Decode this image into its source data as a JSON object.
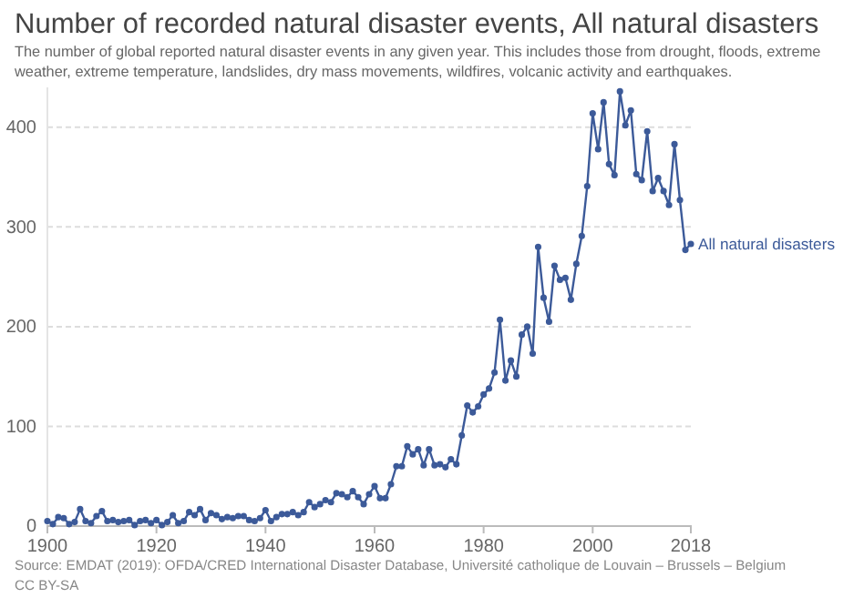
{
  "chart_data": {
    "type": "line",
    "title": "Number of recorded natural disaster events, All natural disasters",
    "subtitle": "The number of global reported natural disaster events in any given year. This includes those from drought, floods, extreme weather, extreme temperature, landslides, dry mass movements, wildfires, volcanic activity and earthquakes.",
    "x": [
      1900,
      1901,
      1902,
      1903,
      1904,
      1905,
      1906,
      1907,
      1908,
      1909,
      1910,
      1911,
      1912,
      1913,
      1914,
      1915,
      1916,
      1917,
      1918,
      1919,
      1920,
      1921,
      1922,
      1923,
      1924,
      1925,
      1926,
      1927,
      1928,
      1929,
      1930,
      1931,
      1932,
      1933,
      1934,
      1935,
      1936,
      1937,
      1938,
      1939,
      1940,
      1941,
      1942,
      1943,
      1944,
      1945,
      1946,
      1947,
      1948,
      1949,
      1950,
      1951,
      1952,
      1953,
      1954,
      1955,
      1956,
      1957,
      1958,
      1959,
      1960,
      1961,
      1962,
      1963,
      1964,
      1965,
      1966,
      1967,
      1968,
      1969,
      1970,
      1971,
      1972,
      1973,
      1974,
      1975,
      1976,
      1977,
      1978,
      1979,
      1980,
      1981,
      1982,
      1983,
      1984,
      1985,
      1986,
      1987,
      1988,
      1989,
      1990,
      1991,
      1992,
      1993,
      1994,
      1995,
      1996,
      1997,
      1998,
      1999,
      2000,
      2001,
      2002,
      2003,
      2004,
      2005,
      2006,
      2007,
      2008,
      2009,
      2010,
      2011,
      2012,
      2013,
      2014,
      2015,
      2016,
      2017,
      2018
    ],
    "series": [
      {
        "name": "All natural disasters",
        "color": "#3c5a99",
        "values": [
          5,
          2,
          9,
          8,
          2,
          4,
          17,
          5,
          3,
          10,
          15,
          5,
          6,
          4,
          5,
          6,
          1,
          5,
          6,
          3,
          6,
          1,
          4,
          11,
          3,
          5,
          14,
          11,
          17,
          6,
          13,
          11,
          7,
          9,
          8,
          10,
          10,
          6,
          5,
          8,
          16,
          5,
          9,
          12,
          12,
          14,
          11,
          14,
          24,
          19,
          22,
          26,
          24,
          33,
          32,
          29,
          35,
          29,
          22,
          32,
          40,
          28,
          28,
          42,
          60,
          60,
          80,
          72,
          77,
          61,
          77,
          61,
          62,
          59,
          67,
          62,
          91,
          121,
          114,
          120,
          132,
          138,
          154,
          207,
          146,
          166,
          150,
          192,
          200,
          173,
          280,
          229,
          205,
          261,
          247,
          249,
          227,
          263,
          291,
          341,
          414,
          378,
          425,
          363,
          352,
          436,
          402,
          417,
          353,
          347,
          396,
          336,
          349,
          336,
          322,
          383,
          327,
          277,
          283
        ]
      }
    ],
    "xlim": [
      1900,
      2018
    ],
    "xticks": [
      1900,
      1920,
      1940,
      1960,
      1980,
      2000,
      2018
    ],
    "ylim": [
      0,
      440
    ],
    "yticks": [
      0,
      100,
      200,
      300,
      400
    ],
    "grid": "y",
    "marker": "circle",
    "line_style": "solid",
    "annotations": [
      "Source: EMDAT (2019): OFDA/CRED International Disaster Database, Université catholique de Louvain – Brussels – Belgium",
      "CC BY-SA"
    ]
  }
}
